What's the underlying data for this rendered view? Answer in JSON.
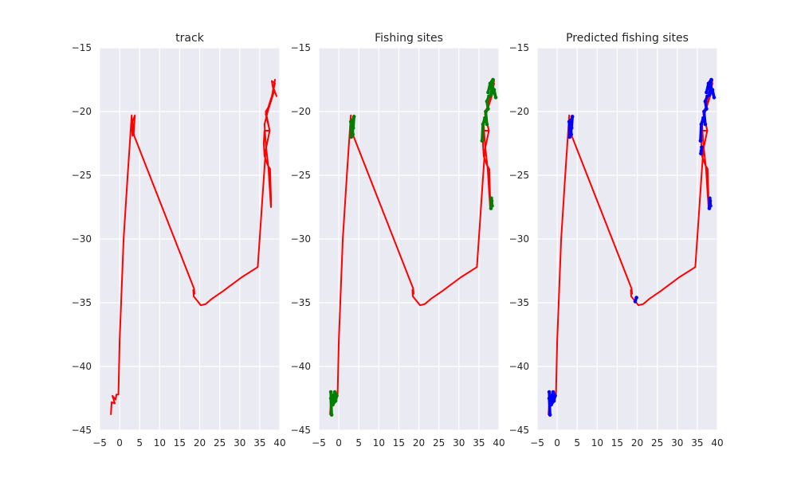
{
  "chart_data": [
    {
      "type": "line",
      "title": "track",
      "xlabel": "",
      "ylabel": "",
      "xlim": [
        -5,
        40
      ],
      "ylim": [
        -45,
        -15
      ],
      "xticks": [
        "−5",
        "0",
        "5",
        "10",
        "15",
        "20",
        "25",
        "30",
        "35",
        "40"
      ],
      "yticks": [
        "−15",
        "−20",
        "−25",
        "−30",
        "−35",
        "−40",
        "−45"
      ],
      "grid": true,
      "track_color": "#FF0000",
      "track": [
        [
          -2.2,
          -43.8
        ],
        [
          -2.0,
          -42.8
        ],
        [
          -1.2,
          -42.9
        ],
        [
          -1.8,
          -42.3
        ],
        [
          -1.0,
          -42.6
        ],
        [
          -0.8,
          -42.2
        ],
        [
          -0.3,
          -42.2
        ],
        [
          0.0,
          -38.0
        ],
        [
          1.0,
          -30.0
        ],
        [
          2.0,
          -25.0
        ],
        [
          3.0,
          -20.3
        ],
        [
          3.2,
          -21.9
        ],
        [
          3.4,
          -21.4
        ],
        [
          3.6,
          -21.9
        ],
        [
          3.2,
          -20.8
        ],
        [
          3.8,
          -20.3
        ],
        [
          3.5,
          -21.8
        ],
        [
          18.6,
          -33.9
        ],
        [
          18.7,
          -34.3
        ],
        [
          18.4,
          -34.0
        ],
        [
          18.5,
          -34.5
        ],
        [
          20.3,
          -35.2
        ],
        [
          21.5,
          -35.1
        ],
        [
          23.0,
          -34.7
        ],
        [
          25.8,
          -34.1
        ],
        [
          27.5,
          -33.7
        ],
        [
          30.5,
          -33.0
        ],
        [
          34.0,
          -32.3
        ],
        [
          34.5,
          -32.2
        ],
        [
          36.5,
          -23.0
        ],
        [
          37.5,
          -21.5
        ],
        [
          36.5,
          -20.0
        ],
        [
          37.5,
          -19.5
        ],
        [
          38.5,
          -18.5
        ],
        [
          38.0,
          -17.6
        ],
        [
          38.8,
          -17.8
        ],
        [
          38.0,
          -18.8
        ],
        [
          37.0,
          -19.8
        ],
        [
          36.5,
          -20.2
        ],
        [
          37.5,
          -21.5
        ],
        [
          36.2,
          -21.5
        ],
        [
          36.0,
          -22.5
        ],
        [
          36.2,
          -23.5
        ],
        [
          37.0,
          -24.2
        ],
        [
          37.6,
          -24.5
        ],
        [
          37.8,
          -26.8
        ],
        [
          37.8,
          -27.5
        ],
        [
          37.6,
          -26.5
        ],
        [
          37.2,
          -24.5
        ],
        [
          36.5,
          -22.5
        ],
        [
          36.2,
          -21.0
        ],
        [
          37.0,
          -20.0
        ],
        [
          38.0,
          -19.0
        ],
        [
          38.3,
          -18.3
        ],
        [
          38.8,
          -17.5
        ],
        [
          38.5,
          -18.2
        ],
        [
          39.2,
          -18.8
        ],
        [
          38.2,
          -18.0
        ]
      ],
      "marker_color": "",
      "marker_segments": []
    },
    {
      "type": "line",
      "title": "Fishing sites",
      "xlabel": "",
      "ylabel": "",
      "xlim": [
        -5,
        40
      ],
      "ylim": [
        -45,
        -15
      ],
      "xticks": [
        "−5",
        "0",
        "5",
        "10",
        "15",
        "20",
        "25",
        "30",
        "35",
        "40"
      ],
      "yticks": [
        "−15",
        "−20",
        "−25",
        "−30",
        "−35",
        "−40",
        "−45"
      ],
      "grid": true,
      "track_color": "#FF0000",
      "track": [
        [
          -2.2,
          -43.8
        ],
        [
          -2.0,
          -42.8
        ],
        [
          -1.2,
          -42.9
        ],
        [
          -1.8,
          -42.3
        ],
        [
          -1.0,
          -42.6
        ],
        [
          -0.8,
          -42.2
        ],
        [
          -0.3,
          -42.2
        ],
        [
          0.0,
          -38.0
        ],
        [
          1.0,
          -30.0
        ],
        [
          2.0,
          -25.0
        ],
        [
          3.0,
          -20.3
        ],
        [
          3.2,
          -21.9
        ],
        [
          3.4,
          -21.4
        ],
        [
          3.6,
          -21.9
        ],
        [
          3.2,
          -20.8
        ],
        [
          3.8,
          -20.3
        ],
        [
          3.5,
          -21.8
        ],
        [
          18.6,
          -33.9
        ],
        [
          18.7,
          -34.3
        ],
        [
          18.4,
          -34.0
        ],
        [
          18.5,
          -34.5
        ],
        [
          20.3,
          -35.2
        ],
        [
          21.5,
          -35.1
        ],
        [
          23.0,
          -34.7
        ],
        [
          25.8,
          -34.1
        ],
        [
          27.5,
          -33.7
        ],
        [
          30.5,
          -33.0
        ],
        [
          34.0,
          -32.3
        ],
        [
          34.5,
          -32.2
        ],
        [
          36.5,
          -23.0
        ],
        [
          37.5,
          -21.5
        ],
        [
          36.5,
          -20.0
        ],
        [
          37.5,
          -19.5
        ],
        [
          38.5,
          -18.5
        ],
        [
          38.0,
          -17.6
        ],
        [
          38.8,
          -17.8
        ],
        [
          38.0,
          -18.8
        ],
        [
          37.0,
          -19.8
        ],
        [
          36.5,
          -20.2
        ],
        [
          37.5,
          -21.5
        ],
        [
          36.2,
          -21.5
        ],
        [
          36.0,
          -22.5
        ],
        [
          36.2,
          -23.5
        ],
        [
          37.0,
          -24.2
        ],
        [
          37.6,
          -24.5
        ],
        [
          37.8,
          -26.8
        ],
        [
          37.8,
          -27.5
        ],
        [
          37.6,
          -26.5
        ],
        [
          37.2,
          -24.5
        ],
        [
          36.5,
          -22.5
        ],
        [
          36.2,
          -21.0
        ],
        [
          37.0,
          -20.0
        ],
        [
          38.0,
          -19.0
        ],
        [
          38.3,
          -18.3
        ],
        [
          38.8,
          -17.5
        ],
        [
          38.5,
          -18.2
        ],
        [
          39.2,
          -18.8
        ],
        [
          38.2,
          -18.0
        ]
      ],
      "marker_color": "#008000",
      "marker_segments": [
        [
          [
            -2.0,
            -42.0
          ],
          [
            -1.8,
            -43.8
          ],
          [
            -2.0,
            -42.5
          ],
          [
            -1.2,
            -42.2
          ],
          [
            -1.5,
            -43.0
          ],
          [
            -0.8,
            -42.7
          ],
          [
            -0.5,
            -42.3
          ],
          [
            -1.0,
            -42.0
          ]
        ],
        [
          [
            3.0,
            -20.8
          ],
          [
            3.1,
            -22.0
          ],
          [
            3.3,
            -21.2
          ],
          [
            3.5,
            -21.8
          ],
          [
            3.4,
            -20.7
          ],
          [
            3.6,
            -21.3
          ],
          [
            3.8,
            -20.4
          ]
        ],
        [
          [
            35.8,
            -22.3
          ],
          [
            36.0,
            -21.0
          ],
          [
            36.5,
            -20.5
          ],
          [
            37.0,
            -21.0
          ],
          [
            36.7,
            -20.0
          ],
          [
            37.3,
            -19.8
          ],
          [
            37.0,
            -19.2
          ],
          [
            37.5,
            -18.8
          ]
        ],
        [
          [
            37.3,
            -18.5
          ],
          [
            37.8,
            -17.8
          ],
          [
            38.5,
            -17.5
          ],
          [
            38.0,
            -18.7
          ],
          [
            38.8,
            -18.3
          ],
          [
            39.2,
            -18.9
          ],
          [
            38.3,
            -17.9
          ]
        ],
        [
          [
            38.0,
            -27.6
          ],
          [
            38.1,
            -26.8
          ],
          [
            38.3,
            -27.4
          ],
          [
            38.2,
            -27.0
          ]
        ]
      ]
    },
    {
      "type": "line",
      "title": "Predicted fishing sites",
      "xlabel": "",
      "ylabel": "",
      "xlim": [
        -5,
        40
      ],
      "ylim": [
        -45,
        -15
      ],
      "xticks": [
        "−5",
        "0",
        "5",
        "10",
        "15",
        "20",
        "25",
        "30",
        "35",
        "40"
      ],
      "yticks": [
        "−15",
        "−20",
        "−25",
        "−30",
        "−35",
        "−40",
        "−45"
      ],
      "grid": true,
      "track_color": "#FF0000",
      "track": [
        [
          -2.2,
          -43.8
        ],
        [
          -2.0,
          -42.8
        ],
        [
          -1.2,
          -42.9
        ],
        [
          -1.8,
          -42.3
        ],
        [
          -1.0,
          -42.6
        ],
        [
          -0.8,
          -42.2
        ],
        [
          -0.3,
          -42.2
        ],
        [
          0.0,
          -38.0
        ],
        [
          1.0,
          -30.0
        ],
        [
          2.0,
          -25.0
        ],
        [
          3.0,
          -20.3
        ],
        [
          3.2,
          -21.9
        ],
        [
          3.4,
          -21.4
        ],
        [
          3.6,
          -21.9
        ],
        [
          3.2,
          -20.8
        ],
        [
          3.8,
          -20.3
        ],
        [
          3.5,
          -21.8
        ],
        [
          18.6,
          -33.9
        ],
        [
          18.7,
          -34.3
        ],
        [
          18.4,
          -34.0
        ],
        [
          18.5,
          -34.5
        ],
        [
          20.3,
          -35.2
        ],
        [
          21.5,
          -35.1
        ],
        [
          23.0,
          -34.7
        ],
        [
          25.8,
          -34.1
        ],
        [
          27.5,
          -33.7
        ],
        [
          30.5,
          -33.0
        ],
        [
          34.0,
          -32.3
        ],
        [
          34.5,
          -32.2
        ],
        [
          36.5,
          -23.0
        ],
        [
          37.5,
          -21.5
        ],
        [
          36.5,
          -20.0
        ],
        [
          37.5,
          -19.5
        ],
        [
          38.5,
          -18.5
        ],
        [
          38.0,
          -17.6
        ],
        [
          38.8,
          -17.8
        ],
        [
          38.0,
          -18.8
        ],
        [
          37.0,
          -19.8
        ],
        [
          36.5,
          -20.2
        ],
        [
          37.5,
          -21.5
        ],
        [
          36.2,
          -21.5
        ],
        [
          36.0,
          -22.5
        ],
        [
          36.2,
          -23.5
        ],
        [
          37.0,
          -24.2
        ],
        [
          37.6,
          -24.5
        ],
        [
          37.8,
          -26.8
        ],
        [
          37.8,
          -27.5
        ],
        [
          37.6,
          -26.5
        ],
        [
          37.2,
          -24.5
        ],
        [
          36.5,
          -22.5
        ],
        [
          36.2,
          -21.0
        ],
        [
          37.0,
          -20.0
        ],
        [
          38.0,
          -19.0
        ],
        [
          38.3,
          -18.3
        ],
        [
          38.8,
          -17.5
        ],
        [
          38.5,
          -18.2
        ],
        [
          39.2,
          -18.8
        ],
        [
          38.2,
          -18.0
        ]
      ],
      "marker_color": "#0000FF",
      "marker_segments": [
        [
          [
            -2.0,
            -42.0
          ],
          [
            -1.8,
            -43.8
          ],
          [
            -2.0,
            -42.5
          ],
          [
            -1.2,
            -42.2
          ],
          [
            -1.5,
            -43.0
          ],
          [
            -0.8,
            -42.7
          ],
          [
            -0.5,
            -42.3
          ],
          [
            -1.0,
            -42.0
          ]
        ],
        [
          [
            3.0,
            -20.8
          ],
          [
            3.1,
            -22.0
          ],
          [
            3.3,
            -21.2
          ],
          [
            3.5,
            -21.8
          ],
          [
            3.4,
            -20.7
          ],
          [
            3.6,
            -21.3
          ],
          [
            3.8,
            -20.4
          ]
        ],
        [
          [
            35.8,
            -22.3
          ],
          [
            36.0,
            -21.0
          ],
          [
            36.5,
            -20.5
          ],
          [
            37.0,
            -21.0
          ],
          [
            36.7,
            -20.0
          ],
          [
            37.3,
            -19.8
          ],
          [
            37.0,
            -19.2
          ],
          [
            37.5,
            -18.8
          ]
        ],
        [
          [
            35.9,
            -23.3
          ],
          [
            36.1,
            -22.8
          ],
          [
            36.0,
            -23.1
          ]
        ],
        [
          [
            37.3,
            -18.5
          ],
          [
            37.8,
            -17.8
          ],
          [
            38.5,
            -17.5
          ],
          [
            38.0,
            -18.7
          ],
          [
            38.8,
            -18.3
          ],
          [
            39.2,
            -18.9
          ],
          [
            38.3,
            -17.9
          ]
        ],
        [
          [
            38.0,
            -27.6
          ],
          [
            38.1,
            -26.8
          ],
          [
            38.3,
            -27.4
          ],
          [
            38.2,
            -27.0
          ]
        ],
        [
          [
            19.5,
            -34.9
          ],
          [
            19.8,
            -34.6
          ]
        ]
      ]
    }
  ]
}
